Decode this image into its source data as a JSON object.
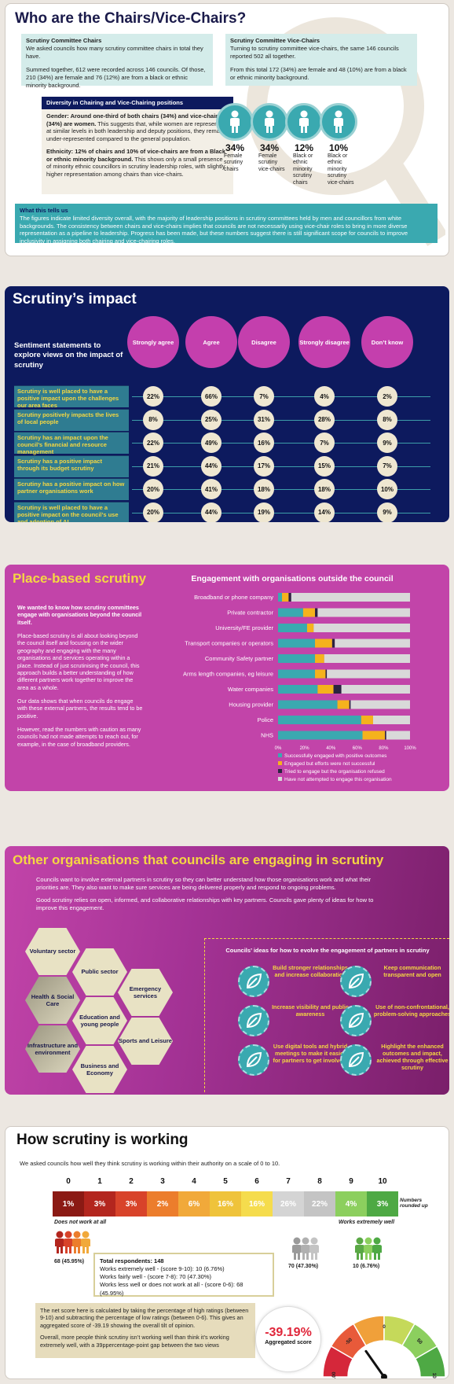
{
  "s1": {
    "title": "Who are the Chairs/Vice-Chairs?",
    "chairs_title": "Scrutiny Committee Chairs",
    "chairs_p1": "We asked councils how many scrutiny committee chairs in total they have.",
    "chairs_p2": "Summed together, 612 were recorded across 146 councils. Of those, 210 (34%) are female and 76 (12%) are from a black or ethnic minority background.",
    "vice_title": "Scrutiny Committee Vice-Chairs",
    "vice_p1": "Turning to scrutiny committee vice-chairs, the same 146 councils reported 502 all together.",
    "vice_p2": "From this total 172 (34%) are female and 48 (10%) are from a black or ethnic minority background.",
    "div_title": "Diversity in Chairing and Vice-Chairing positions",
    "gender_lead": "Gender:",
    "gender_bold": " Around one-third of both chairs (34%) and vice-chairs (34%) are women.",
    "gender_text": " This suggests that, while women are represented at similar levels in both leadership and deputy positions, they remain under-represented compared to the general population.",
    "eth_lead": "Ethnicity: 12% of chairs and 10% of vice-chairs are from a Black or ethnic minority background.",
    "eth_text": " This shows only a small presence of minority ethnic councillors in scrutiny leadership roles, with slightly higher representation among chairs than vice-chairs.",
    "stats": [
      {
        "pct": "34%",
        "label": "Female scrutiny chairs"
      },
      {
        "pct": "34%",
        "label": "Female scrutiny vice-chairs"
      },
      {
        "pct": "12%",
        "label": "Black or ethnic minority scrutiny chairs"
      },
      {
        "pct": "10%",
        "label": "Black or ethnic minority scrutiny vice-chairs"
      }
    ],
    "tell_title": "What this tells us",
    "tell_text": "The figures indicate limited diversity overall, with the majority of leadership positions in scrutiny committees held by men and councillors from white backgrounds. The consistency between chairs and vice-chairs implies that councils are not necessarily using vice-chair roles to bring in more diverse representation as a pipeline to leadership. Progress has been made, but these numbers suggest there is still significant scope for councils to improve inclusivity in assigning both chairing and vice-chairing roles."
  },
  "s2": {
    "title": "Scrutiny’s impact",
    "question": "Sentiment statements to explore views on the impact of scrutiny",
    "headers": [
      "Strongly agree",
      "Agree",
      "Disagree",
      "Strongly disagree",
      "Don’t know"
    ],
    "rows": [
      {
        "label": "Scrutiny is well placed to have a positive impact upon the challenges our area faces",
        "values": [
          "22%",
          "66%",
          "7%",
          "4%",
          "2%"
        ]
      },
      {
        "label": "Scrutiny positively impacts the lives of local people",
        "values": [
          "8%",
          "25%",
          "31%",
          "28%",
          "8%"
        ]
      },
      {
        "label": "Scrutiny has an impact upon the council’s financial and resource management",
        "values": [
          "22%",
          "49%",
          "16%",
          "7%",
          "9%"
        ]
      },
      {
        "label": "Scrutiny has a positive impact through its budget scrutiny",
        "values": [
          "21%",
          "44%",
          "17%",
          "15%",
          "7%"
        ]
      },
      {
        "label": "Scrutiny has a positive impact on how partner organisations work",
        "values": [
          "20%",
          "41%",
          "18%",
          "18%",
          "10%"
        ]
      },
      {
        "label": "Scrutiny is well placed to have a positive impact on the council’s use and adoption of AI",
        "values": [
          "20%",
          "44%",
          "19%",
          "14%",
          "9%"
        ]
      }
    ]
  },
  "s3": {
    "title": "Place-based scrutiny",
    "p1": "We wanted to know how scrutiny committees engage with organisations beyond the council itself.",
    "p2": "Place-based scrutiny is all about looking beyond the council itself and focusing on the wider geography and engaging with the many organisations and services operating within a place. Instead of just scrutinising the council, this approach builds a better understanding of how different partners work together to improve the area as a whole.",
    "p3": "Our data shows that when councils do engage with these external partners, the results tend to be positive.",
    "p4": "However, read the numbers with caution as many councils had not made attempts to reach out, for example, in the case of broadband providers."
  },
  "chart_data": {
    "type": "bar",
    "orientation": "horizontal",
    "stacked": true,
    "title": "Engagement with organisations outside the council",
    "categories": [
      "Broadband or phone company",
      "Private contractor",
      "University/FE provider",
      "Transport companies or operators",
      "Community Safety partner",
      "Arms length companies, eg leisure",
      "Water companies",
      "Housing provider",
      "Police",
      "NHS"
    ],
    "series": [
      {
        "name": "Successfully engaged with positive outcomes",
        "color": "#3aa9b0",
        "values": [
          3,
          19,
          22,
          28,
          28,
          28,
          30,
          45,
          63,
          64
        ]
      },
      {
        "name": "Engaged but efforts were not successful",
        "color": "#f5b21d",
        "values": [
          5,
          9,
          5,
          13,
          7,
          8,
          12,
          9,
          9,
          17
        ]
      },
      {
        "name": "Tried to engage but the organisation refused",
        "color": "#2a2440",
        "values": [
          2,
          2,
          0,
          2,
          0,
          1,
          6,
          1,
          0,
          1
        ]
      },
      {
        "name": "Have not attempted to engage this organisation",
        "color": "#d9d9d9",
        "values": [
          90,
          70,
          73,
          57,
          65,
          63,
          52,
          45,
          28,
          18
        ]
      }
    ],
    "xticks": [
      "0%",
      "20%",
      "40%",
      "60%",
      "80%",
      "100%"
    ],
    "xlim": [
      0,
      100
    ],
    "legend": "bottom"
  },
  "s4": {
    "title": "Other organisations that councils are engaging in scrutiny",
    "p1": "Councils want to involve external partners in scrutiny so they can better understand how those organisations work and what their priorities are. They also want to make sure services are being delivered properly and respond to ongoing problems.",
    "p2": "Good scrutiny relies on open, informed, and collaborative relationships with key partners. Councils gave plenty of ideas for how to improve this engagement.",
    "hexes": [
      "Voluntary sector",
      "Public sector",
      "Health & Social Care",
      "Emergency services",
      "Education and young people",
      "Infrastructure and environment",
      "Sports and Leisure",
      "Business and Economy"
    ],
    "ideas_title": "Councils’ ideas for how to evolve the engagement of partners in scrutiny",
    "ideas": [
      "Build stronger relationships and increase collaboration",
      "Keep communication transparent and open",
      "Increase visibility and public awareness",
      "Use of non-confrontational, problem-solving approaches",
      "Use digital tools and hybrid meetings to make it easier for partners to get involved.",
      "Highlight the enhanced outcomes and impact, achieved through effective scrutiny"
    ]
  },
  "s5": {
    "title": "How scrutiny is working",
    "sub": "We asked councils how well they think scrutiny is working within their authority on a scale of 0 to 10.",
    "scale": [
      {
        "n": "0",
        "v": "1%",
        "color": "#8b1a14"
      },
      {
        "n": "1",
        "v": "3%",
        "color": "#b3261e"
      },
      {
        "n": "2",
        "v": "3%",
        "color": "#d8432a"
      },
      {
        "n": "3",
        "v": "2%",
        "color": "#ec7d2c"
      },
      {
        "n": "4",
        "v": "6%",
        "color": "#f1a93a"
      },
      {
        "n": "5",
        "v": "16%",
        "color": "#efc33b"
      },
      {
        "n": "6",
        "v": "16%",
        "color": "#f5dc4d"
      },
      {
        "n": "7",
        "v": "26%",
        "color": "#d4d4d4"
      },
      {
        "n": "8",
        "v": "22%",
        "color": "#c4c4c4"
      },
      {
        "n": "9",
        "v": "4%",
        "color": "#8ccf5e"
      },
      {
        "n": "10",
        "v": "3%",
        "color": "#4ea944"
      }
    ],
    "rounded": "Numbers rounded up",
    "low_label": "Does not work at all",
    "high_label": "Works extremely well",
    "grp_low": "68 (45.95%)",
    "grp_mid": "70 (47.30%)",
    "grp_high": "10 (6.76%)",
    "tot1": "Total respondents: 148",
    "tot2": "Works extremely well - (score 9-10): 10 (6.76%)",
    "tot3": "Works fairly well - (score 7-8): 70 (47.30%)",
    "tot4": "Works less well or does not work at all - (score 0-6): 68 (45.95%)",
    "net1": "The net score here is calculated by taking the percentage of high ratings (between 9-10) and subtracting the percentage of low ratings (between 0-6). This gives an aggregated score of -39.19 showing the overall tilt of opinion.",
    "net2": "Overall, more people think scrutiny isn’t working well than think it’s working extremely well, with a 39ppercentage-point gap between the two views",
    "agg_value": "-39.19%",
    "agg_label": "Aggregated score",
    "gauge_ticks": [
      "-100",
      "-50",
      "0",
      "50",
      "100"
    ],
    "gauge_value": -39.19
  }
}
